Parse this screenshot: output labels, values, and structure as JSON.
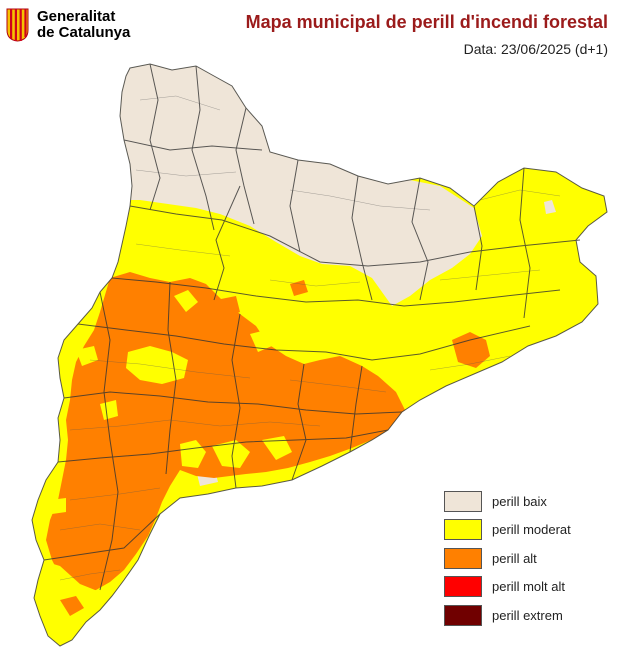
{
  "header": {
    "logo_line1": "Generalitat",
    "logo_line2": "de Catalunya",
    "title": "Mapa municipal de perill d'incendi forestal",
    "date": "Data: 23/06/2025 (d+1)"
  },
  "colors": {
    "title": "#9b1b1b",
    "baix": "#efe5d8",
    "moderat": "#ffff00",
    "alt": "#ff8000",
    "molt_alt": "#ff0000",
    "extrem": "#700000",
    "logo_red": "#d0021b",
    "logo_yellow": "#f5c200"
  },
  "legend": [
    {
      "label": "perill baix",
      "color": "#efe5d8"
    },
    {
      "label": "perill moderat",
      "color": "#ffff00"
    },
    {
      "label": "perill alt",
      "color": "#ff8000"
    },
    {
      "label": "perill molt alt",
      "color": "#ff0000"
    },
    {
      "label": "perill extrem",
      "color": "#700000"
    }
  ]
}
